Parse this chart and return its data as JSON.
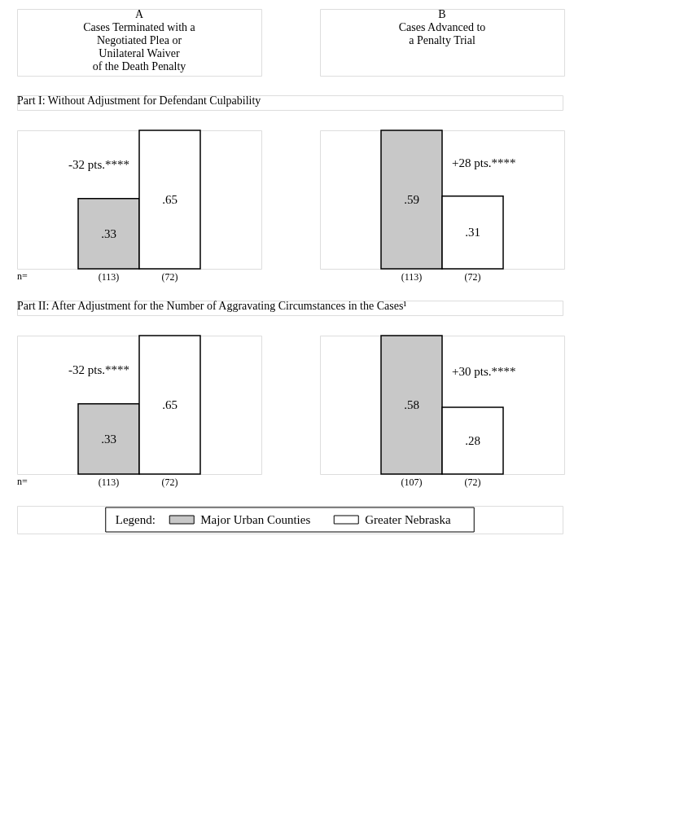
{
  "chart_data": [
    {
      "type": "bar",
      "title": "A\nCases Terminated with a\nNegotiated Plea or\nUnilateral Waiver\nof the Death Penalty",
      "subtitle": "Part I: Without Adjustment for Defendant Culpability",
      "categories": [
        "(113)",
        "(72)"
      ],
      "tick_labels": "x",
      "series": [
        {
          "color": "#c8c8c8",
          "values": [
            0.33,
            null
          ],
          "value_labels": [
            ".33",
            null
          ]
        },
        {
          "color": "#ffffff",
          "values": [
            null,
            0.65
          ],
          "value_labels": [
            null,
            ".65"
          ]
        }
      ],
      "annotations": [
        "-32 pts.****",
        "n="
      ]
    },
    {
      "type": "bar",
      "title": "B\nCases Advanced to\na Penalty Trial",
      "categories": [
        "(113)",
        "(72)"
      ],
      "tick_labels": "x",
      "series": [
        {
          "color": "#c8c8c8",
          "values": [
            0.59,
            null
          ],
          "value_labels": [
            ".59",
            null
          ]
        },
        {
          "color": "#ffffff",
          "values": [
            null,
            0.31
          ],
          "value_labels": [
            null,
            ".31"
          ]
        }
      ],
      "annotations": [
        "+28 pts.****"
      ]
    },
    {
      "type": "bar",
      "subtitle": "Part II: After Adjustment for the Number of Aggravating Circumstances in the Cases¹",
      "categories": [
        "(113)",
        "(72)"
      ],
      "tick_labels": "x",
      "series": [
        {
          "color": "#c8c8c8",
          "values": [
            0.33,
            null
          ],
          "value_labels": [
            ".33",
            null
          ]
        },
        {
          "color": "#ffffff",
          "values": [
            null,
            0.65
          ],
          "value_labels": [
            null,
            ".65"
          ]
        }
      ],
      "annotations": [
        "-32 pts.****",
        "n="
      ]
    },
    {
      "type": "bar",
      "categories": [
        "(107)",
        "(72)"
      ],
      "tick_labels": "x",
      "legend": "bottom",
      "legend_title": "Legend:",
      "series": [
        {
          "name": "Major Urban Counties",
          "color": "#c8c8c8",
          "values": [
            0.58,
            null
          ],
          "value_labels": [
            ".58",
            null
          ]
        },
        {
          "name": "Greater Nebraska",
          "color": "#ffffff",
          "values": [
            null,
            0.28
          ],
          "value_labels": [
            null,
            ".28"
          ]
        }
      ],
      "annotations": [
        "+30 pts.****"
      ]
    }
  ]
}
